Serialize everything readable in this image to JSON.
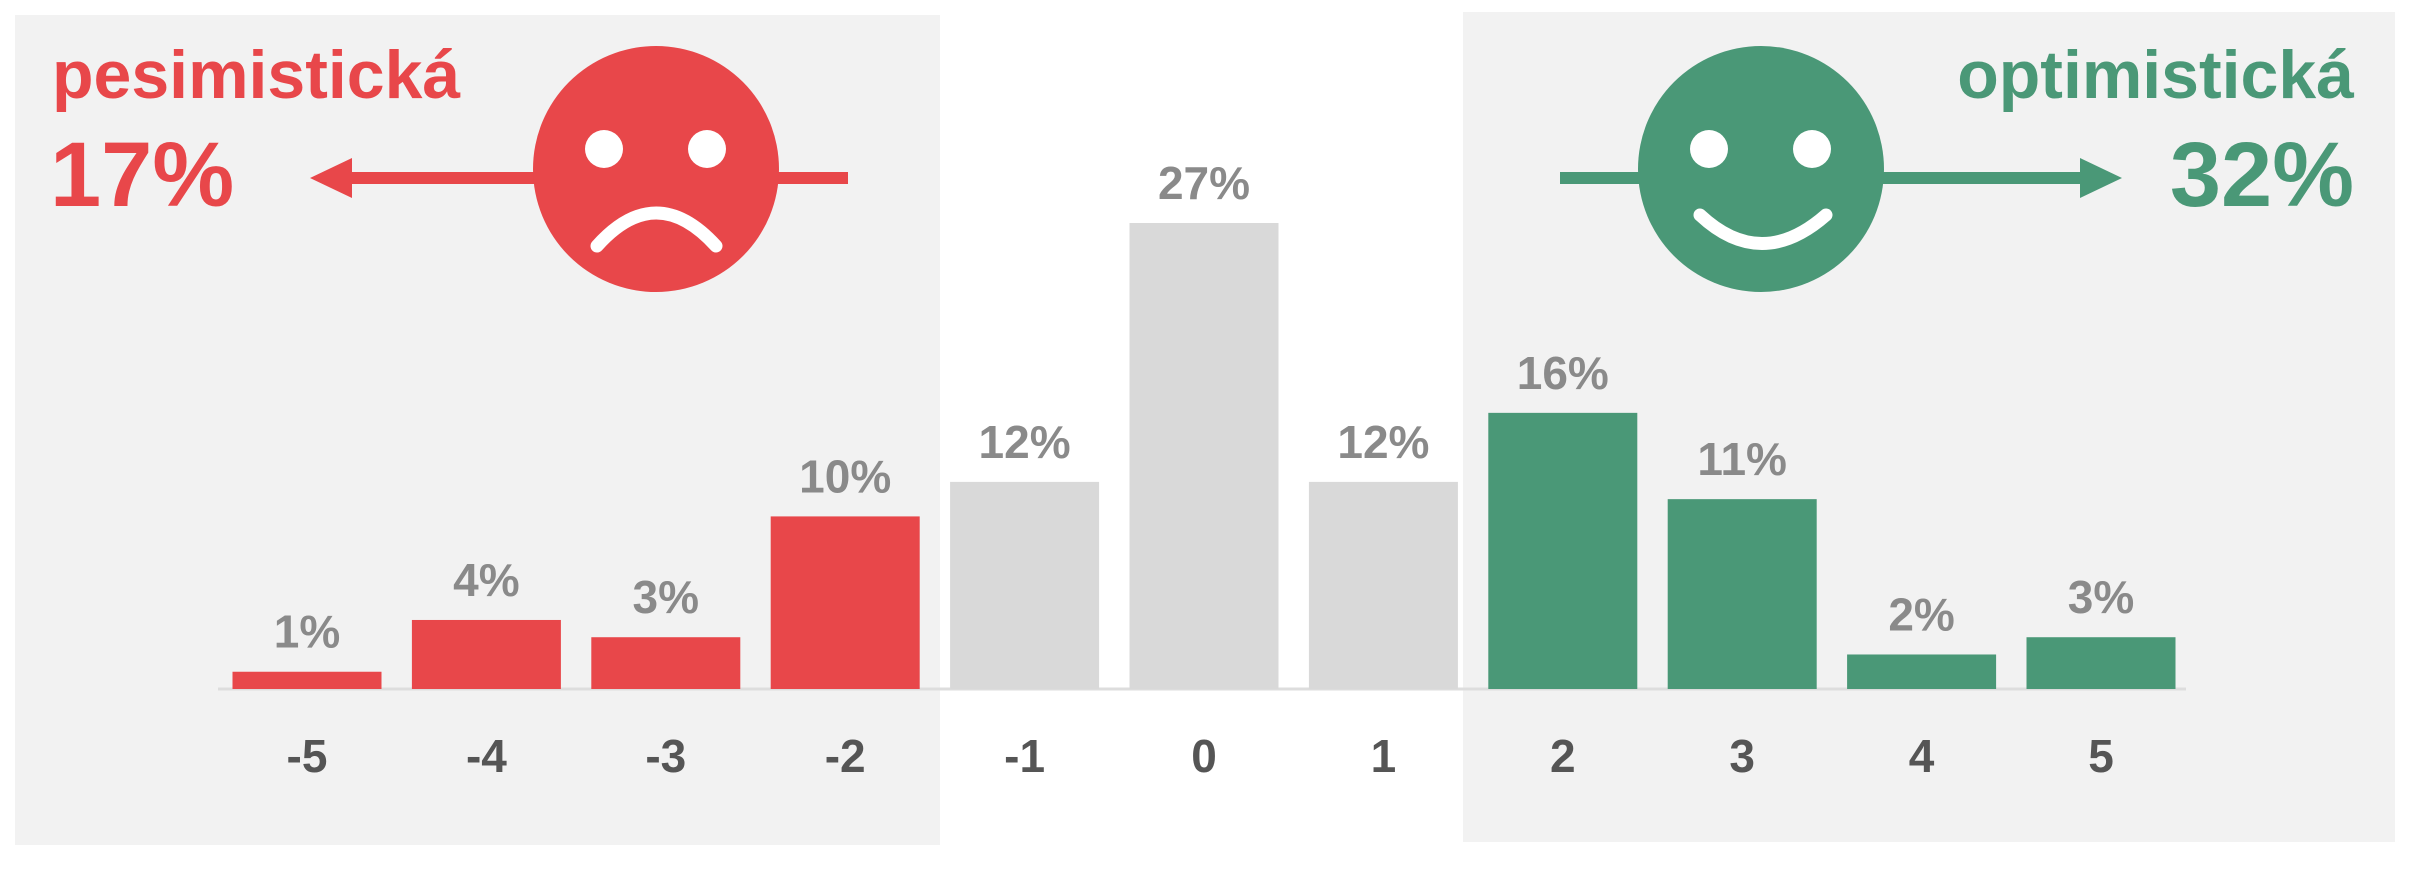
{
  "chart_data": {
    "type": "bar",
    "categories": [
      "-5",
      "-4",
      "-3",
      "-2",
      "-1",
      "0",
      "1",
      "2",
      "3",
      "4",
      "5"
    ],
    "values": [
      1,
      4,
      3,
      10,
      12,
      27,
      12,
      16,
      11,
      2,
      3
    ],
    "value_labels": [
      "1%",
      "4%",
      "3%",
      "10%",
      "12%",
      "27%",
      "12%",
      "16%",
      "11%",
      "2%",
      "3%"
    ],
    "colors": [
      "#e8474a",
      "#e8474a",
      "#e8474a",
      "#e8474a",
      "#d9d9d9",
      "#d9d9d9",
      "#d9d9d9",
      "#4a9877",
      "#4a9877",
      "#4a9877",
      "#4a9877"
    ],
    "annotations": {
      "left_label": "pesimistická",
      "left_value": "17%",
      "right_label": "optimistická",
      "right_value": "32%"
    }
  }
}
